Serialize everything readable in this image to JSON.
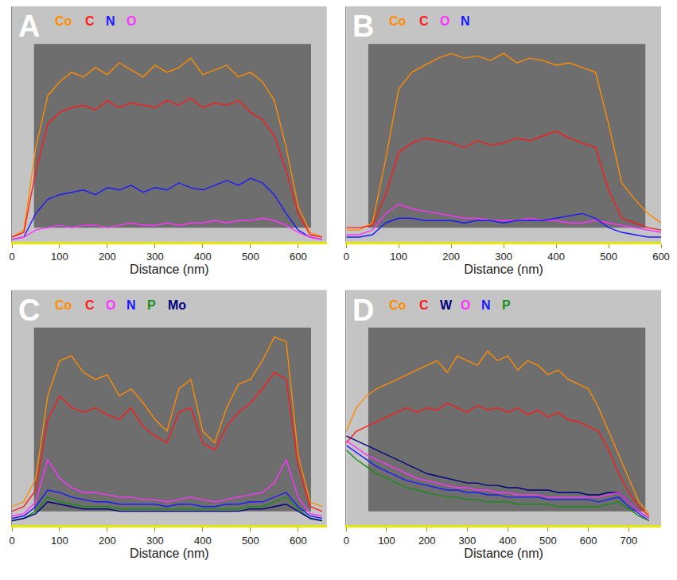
{
  "chart_data": [
    {
      "type": "line",
      "title": "A",
      "x_label": "Distance (nm)",
      "tick_labels": "x",
      "xlim": [
        0,
        660
      ],
      "xticks": [
        0,
        100,
        200,
        300,
        400,
        500,
        600
      ],
      "ylim": [
        0,
        100
      ],
      "x": [
        0,
        25,
        50,
        75,
        100,
        125,
        150,
        175,
        200,
        225,
        250,
        275,
        300,
        325,
        350,
        375,
        400,
        425,
        450,
        475,
        500,
        525,
        550,
        575,
        600,
        625,
        650
      ],
      "series": [
        {
          "name": "Co",
          "color": "#ff8c00",
          "values": [
            2,
            5,
            40,
            62,
            68,
            72,
            70,
            74,
            71,
            76,
            73,
            70,
            75,
            72,
            74,
            78,
            71,
            73,
            75,
            70,
            72,
            68,
            60,
            40,
            15,
            4,
            2
          ]
        },
        {
          "name": "C",
          "color": "#ff1a1a",
          "values": [
            2,
            4,
            30,
            50,
            55,
            57,
            58,
            56,
            60,
            57,
            59,
            58,
            57,
            60,
            58,
            61,
            57,
            59,
            58,
            60,
            55,
            52,
            45,
            30,
            12,
            3,
            2
          ]
        },
        {
          "name": "N",
          "color": "#1a1aff",
          "values": [
            1,
            2,
            12,
            18,
            20,
            21,
            22,
            20,
            23,
            22,
            24,
            21,
            23,
            22,
            25,
            23,
            22,
            24,
            26,
            24,
            27,
            25,
            20,
            12,
            5,
            2,
            1
          ]
        },
        {
          "name": "O",
          "color": "#ff33ff",
          "values": [
            1,
            2,
            5,
            6,
            7,
            6,
            7,
            7,
            6,
            7,
            8,
            7,
            7,
            8,
            7,
            8,
            8,
            9,
            8,
            9,
            9,
            10,
            9,
            7,
            4,
            2,
            1
          ]
        }
      ]
    },
    {
      "type": "line",
      "title": "B",
      "x_label": "Distance (nm)",
      "tick_labels": "x",
      "xlim": [
        0,
        600
      ],
      "xticks": [
        0,
        100,
        200,
        300,
        400,
        500,
        600
      ],
      "ylim": [
        0,
        100
      ],
      "x": [
        0,
        25,
        50,
        75,
        100,
        125,
        150,
        175,
        200,
        225,
        250,
        275,
        300,
        325,
        350,
        375,
        400,
        425,
        450,
        475,
        500,
        525,
        550,
        575,
        600
      ],
      "series": [
        {
          "name": "Co",
          "color": "#ff8c00",
          "values": [
            5,
            5,
            8,
            35,
            65,
            72,
            75,
            78,
            80,
            78,
            79,
            77,
            80,
            76,
            78,
            77,
            75,
            76,
            74,
            72,
            50,
            25,
            18,
            12,
            8
          ]
        },
        {
          "name": "C",
          "color": "#ff1a1a",
          "values": [
            6,
            6,
            7,
            20,
            38,
            42,
            44,
            43,
            42,
            40,
            43,
            41,
            42,
            44,
            43,
            45,
            47,
            44,
            42,
            40,
            22,
            10,
            8,
            6,
            5
          ]
        },
        {
          "name": "O",
          "color": "#ff33ff",
          "values": [
            3,
            3,
            5,
            12,
            16,
            14,
            13,
            12,
            11,
            10,
            10,
            9,
            9,
            9,
            10,
            9,
            9,
            8,
            8,
            9,
            8,
            7,
            6,
            5,
            4
          ]
        },
        {
          "name": "N",
          "color": "#1a1aff",
          "values": [
            2,
            2,
            3,
            8,
            10,
            10,
            9,
            9,
            9,
            8,
            9,
            9,
            8,
            9,
            9,
            9,
            10,
            11,
            12,
            10,
            6,
            4,
            3,
            2,
            2
          ]
        }
      ]
    },
    {
      "type": "line",
      "title": "C",
      "x_label": "Distance (nm)",
      "tick_labels": "x",
      "xlim": [
        0,
        660
      ],
      "xticks": [
        0,
        100,
        200,
        300,
        400,
        500,
        600
      ],
      "ylim": [
        0,
        100
      ],
      "x": [
        0,
        25,
        50,
        75,
        100,
        125,
        150,
        175,
        200,
        225,
        250,
        275,
        300,
        325,
        350,
        375,
        400,
        425,
        450,
        475,
        500,
        525,
        550,
        575,
        600,
        625,
        650
      ],
      "series": [
        {
          "name": "Co",
          "color": "#ff8c00",
          "values": [
            8,
            10,
            20,
            55,
            70,
            72,
            65,
            62,
            64,
            55,
            58,
            52,
            45,
            40,
            58,
            62,
            40,
            35,
            50,
            60,
            62,
            70,
            80,
            78,
            30,
            10,
            8
          ]
        },
        {
          "name": "C",
          "color": "#ff1a1a",
          "values": [
            6,
            8,
            15,
            45,
            55,
            50,
            48,
            50,
            47,
            45,
            50,
            42,
            38,
            35,
            48,
            50,
            35,
            32,
            42,
            48,
            52,
            58,
            65,
            62,
            25,
            8,
            6
          ]
        },
        {
          "name": "O",
          "color": "#ff33ff",
          "values": [
            4,
            5,
            10,
            28,
            20,
            16,
            14,
            14,
            13,
            12,
            12,
            11,
            11,
            10,
            11,
            12,
            11,
            10,
            11,
            12,
            13,
            14,
            18,
            28,
            12,
            5,
            4
          ]
        },
        {
          "name": "N",
          "color": "#1a1aff",
          "values": [
            3,
            4,
            8,
            15,
            14,
            12,
            11,
            10,
            10,
            9,
            9,
            9,
            9,
            8,
            9,
            9,
            8,
            8,
            9,
            9,
            10,
            10,
            12,
            14,
            8,
            4,
            3
          ]
        },
        {
          "name": "P",
          "color": "#1a8c1a",
          "values": [
            2,
            3,
            6,
            12,
            10,
            9,
            8,
            8,
            8,
            7,
            7,
            7,
            7,
            7,
            7,
            7,
            7,
            7,
            7,
            7,
            8,
            8,
            10,
            12,
            7,
            3,
            2
          ]
        },
        {
          "name": "Mo",
          "color": "#000080",
          "values": [
            2,
            3,
            5,
            10,
            9,
            8,
            7,
            7,
            7,
            6,
            6,
            6,
            6,
            6,
            6,
            6,
            6,
            6,
            6,
            6,
            7,
            7,
            8,
            9,
            6,
            3,
            2
          ]
        }
      ]
    },
    {
      "type": "line",
      "title": "D",
      "x_label": "Distance (nm)",
      "tick_labels": "x",
      "xlim": [
        0,
        780
      ],
      "xticks": [
        0,
        100,
        200,
        300,
        400,
        500,
        600,
        700
      ],
      "ylim": [
        0,
        100
      ],
      "x": [
        0,
        25,
        50,
        75,
        100,
        125,
        150,
        175,
        200,
        225,
        250,
        275,
        300,
        325,
        350,
        375,
        400,
        425,
        450,
        475,
        500,
        525,
        550,
        575,
        600,
        625,
        650,
        675,
        700,
        725,
        750
      ],
      "series": [
        {
          "name": "Co",
          "color": "#ff8c00",
          "values": [
            40,
            50,
            55,
            58,
            60,
            62,
            64,
            66,
            68,
            70,
            65,
            72,
            70,
            68,
            74,
            70,
            72,
            66,
            70,
            68,
            64,
            66,
            62,
            60,
            58,
            50,
            40,
            30,
            20,
            10,
            5
          ]
        },
        {
          "name": "C",
          "color": "#ff1a1a",
          "values": [
            35,
            40,
            42,
            44,
            46,
            48,
            50,
            48,
            50,
            49,
            52,
            50,
            48,
            51,
            49,
            50,
            48,
            50,
            47,
            49,
            46,
            48,
            45,
            44,
            42,
            40,
            32,
            22,
            14,
            8,
            4
          ]
        },
        {
          "name": "W",
          "color": "#000080",
          "values": [
            38,
            36,
            34,
            32,
            30,
            28,
            26,
            24,
            22,
            21,
            20,
            19,
            18,
            18,
            17,
            17,
            16,
            16,
            15,
            15,
            15,
            14,
            14,
            14,
            13,
            13,
            14,
            14,
            10,
            6,
            3
          ]
        },
        {
          "name": "O",
          "color": "#ff33ff",
          "values": [
            36,
            33,
            30,
            28,
            26,
            24,
            22,
            20,
            19,
            18,
            17,
            16,
            16,
            15,
            15,
            14,
            14,
            13,
            13,
            13,
            12,
            12,
            12,
            12,
            12,
            12,
            13,
            14,
            10,
            6,
            3
          ]
        },
        {
          "name": "N",
          "color": "#1a1aff",
          "values": [
            34,
            31,
            28,
            25,
            23,
            21,
            19,
            18,
            17,
            16,
            15,
            15,
            14,
            14,
            13,
            13,
            12,
            12,
            12,
            12,
            11,
            11,
            11,
            11,
            11,
            10,
            11,
            12,
            8,
            5,
            2
          ]
        },
        {
          "name": "P",
          "color": "#1a8c1a",
          "values": [
            32,
            28,
            25,
            22,
            20,
            18,
            16,
            15,
            14,
            13,
            12,
            12,
            11,
            11,
            10,
            10,
            10,
            9,
            9,
            9,
            9,
            8,
            8,
            8,
            8,
            8,
            9,
            10,
            7,
            4,
            2
          ]
        }
      ]
    }
  ]
}
